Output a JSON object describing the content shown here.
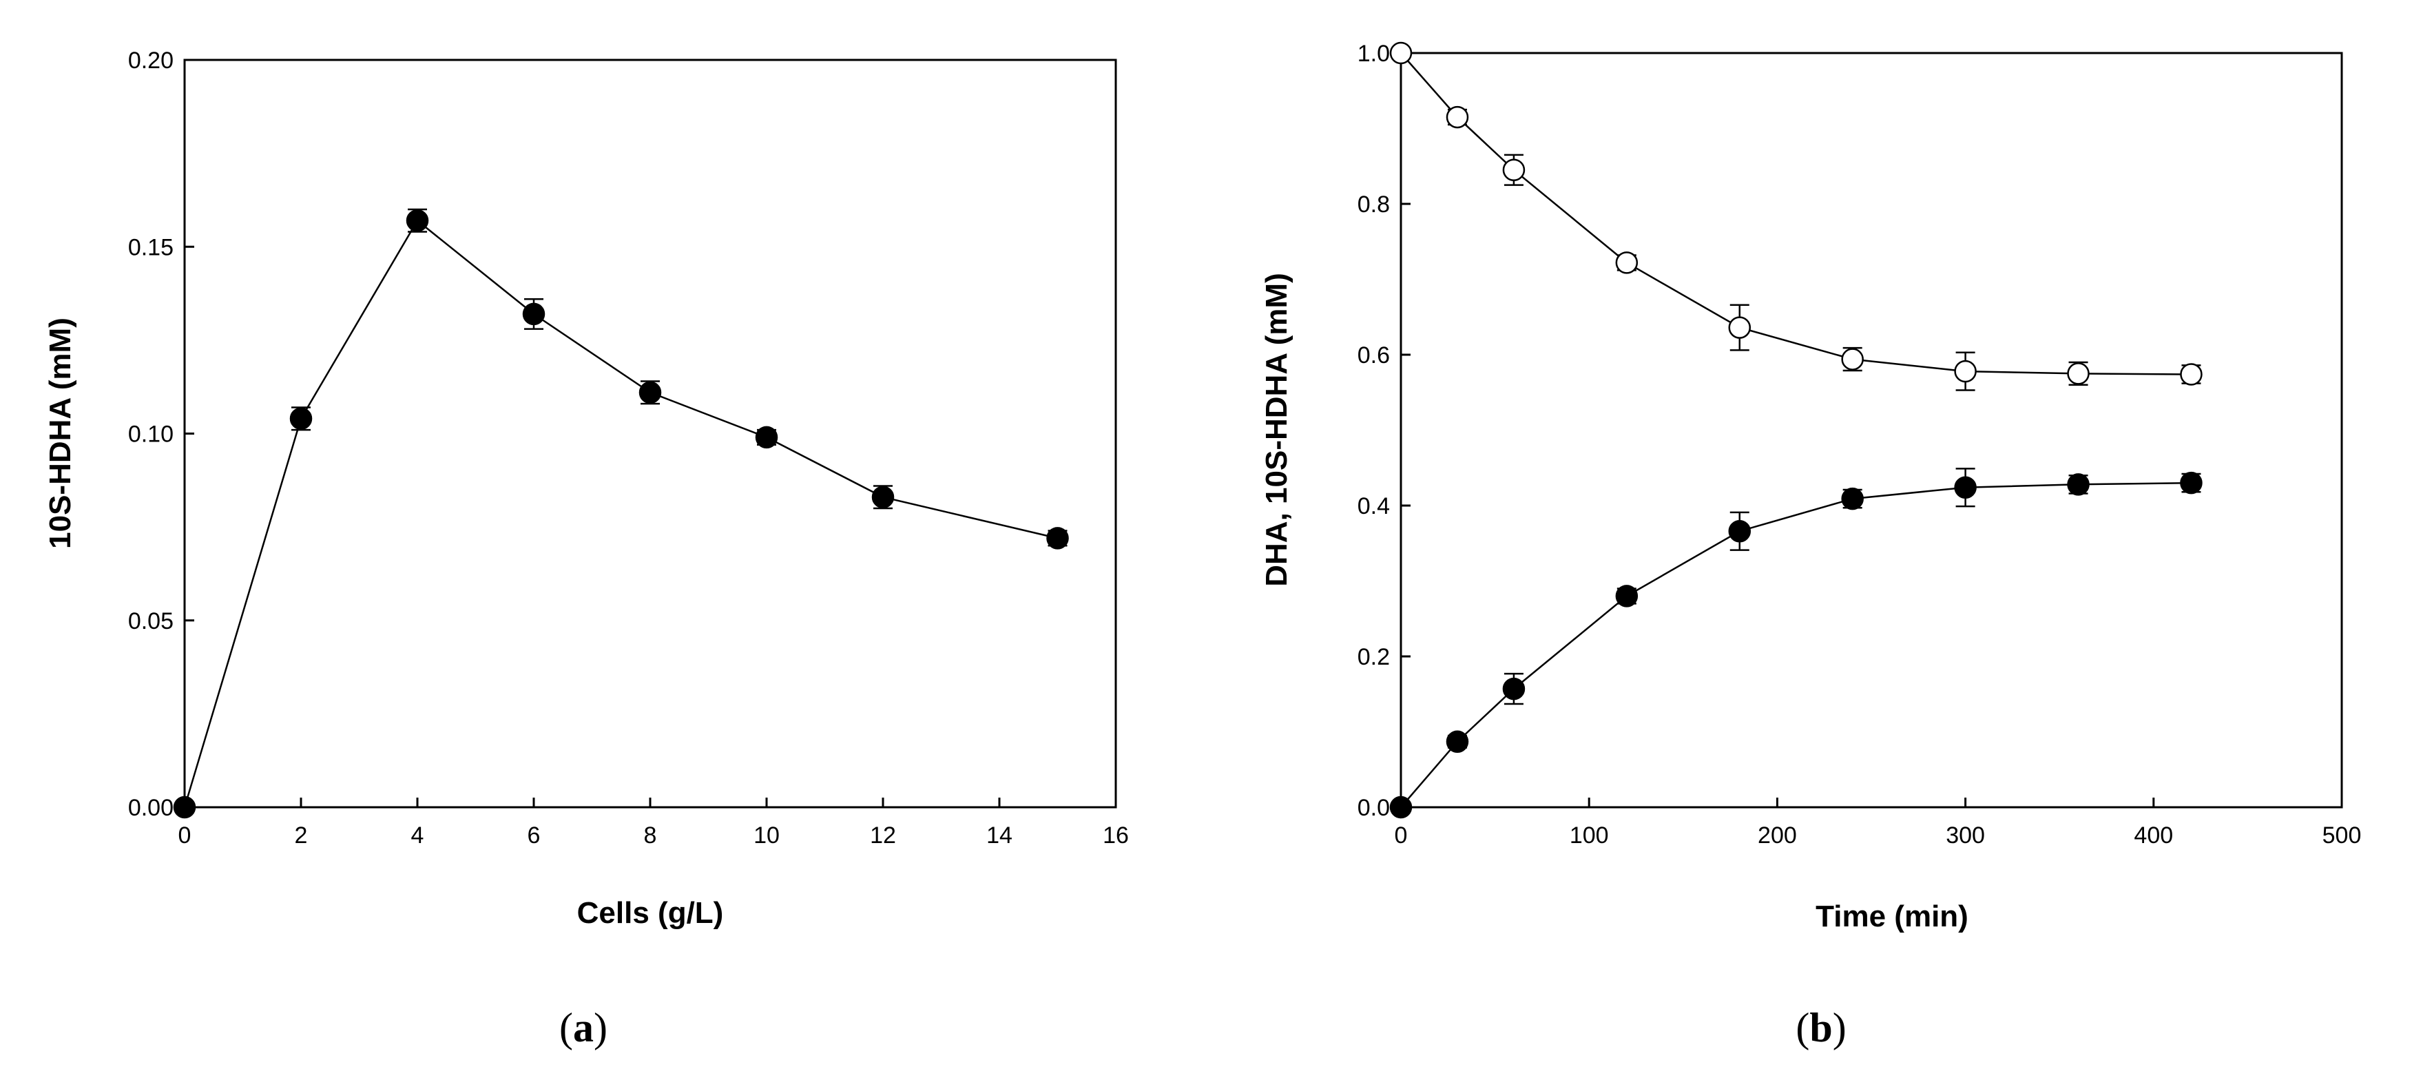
{
  "chart_data": [
    {
      "type": "line",
      "panel_label": {
        "open": "(",
        "letter": "a",
        "close": ")"
      },
      "title": "",
      "xlabel": "Cells (g/L)",
      "ylabel": "10S-HDHA (mM)",
      "xlim": [
        0,
        16
      ],
      "ylim": [
        0,
        0.2
      ],
      "xticks": [
        0,
        2,
        4,
        6,
        8,
        10,
        12,
        14,
        16
      ],
      "xtick_labels": [
        "0",
        "2",
        "4",
        "6",
        "8",
        "10",
        "12",
        "14",
        "16"
      ],
      "yticks": [
        0,
        0.05,
        0.1,
        0.15,
        0.2
      ],
      "ytick_labels": [
        "0.00",
        "0.05",
        "0.10",
        "0.15",
        "0.20"
      ],
      "grid": false,
      "series": [
        {
          "name": "10S-HDHA",
          "marker": "filled-circle",
          "color": "#000000",
          "x": [
            0,
            2,
            4,
            6,
            8,
            10,
            12,
            15
          ],
          "y": [
            0.0,
            0.104,
            0.157,
            0.132,
            0.111,
            0.099,
            0.083,
            0.072
          ],
          "err": [
            0.0,
            0.003,
            0.003,
            0.004,
            0.003,
            0.002,
            0.003,
            0.002
          ]
        }
      ]
    },
    {
      "type": "line",
      "panel_label": {
        "open": "(",
        "letter": "b",
        "close": ")"
      },
      "title": "",
      "xlabel": "Time (min)",
      "ylabel": "DHA, 10S-HDHA (mM)",
      "xlim": [
        0,
        500
      ],
      "ylim": [
        0,
        1.0
      ],
      "xticks": [
        0,
        100,
        200,
        300,
        400,
        500
      ],
      "xtick_labels": [
        "0",
        "100",
        "200",
        "300",
        "400",
        "500"
      ],
      "yticks": [
        0,
        0.2,
        0.4,
        0.6,
        0.8,
        1.0
      ],
      "ytick_labels": [
        "0.0",
        "0.2",
        "0.4",
        "0.6",
        "0.8",
        "1.0"
      ],
      "grid": false,
      "series": [
        {
          "name": "DHA",
          "marker": "open-circle",
          "color": "#000000",
          "x": [
            0,
            30,
            60,
            120,
            180,
            240,
            300,
            360,
            420
          ],
          "y": [
            1.0,
            0.915,
            0.845,
            0.722,
            0.636,
            0.594,
            0.578,
            0.575,
            0.574
          ],
          "err": [
            0.0,
            0.01,
            0.02,
            0.01,
            0.03,
            0.015,
            0.025,
            0.015,
            0.012
          ]
        },
        {
          "name": "10S-HDHA",
          "marker": "filled-circle",
          "color": "#000000",
          "x": [
            0,
            30,
            60,
            120,
            180,
            240,
            300,
            360,
            420
          ],
          "y": [
            0.0,
            0.087,
            0.157,
            0.28,
            0.366,
            0.409,
            0.424,
            0.428,
            0.43
          ],
          "err": [
            0.0,
            0.008,
            0.02,
            0.01,
            0.025,
            0.012,
            0.025,
            0.012,
            0.012
          ]
        }
      ]
    }
  ]
}
